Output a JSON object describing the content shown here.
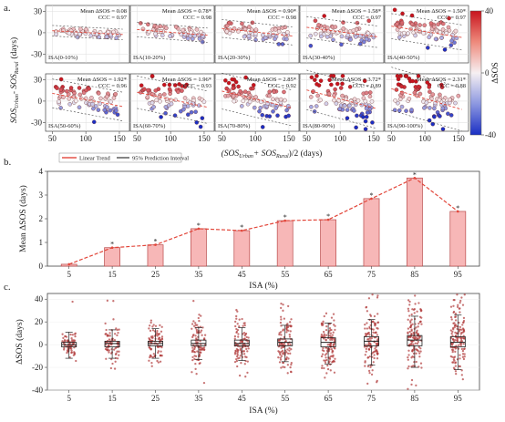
{
  "panels": {
    "a": "a.",
    "b": "b.",
    "c": "c."
  },
  "chart_data": [
    {
      "type": "scatter",
      "panel": "a",
      "ylabel_main": "SOS",
      "ylabel_sub1": "Urban",
      "ylabel_mid": "- SOS",
      "ylabel_sub2": "Rural",
      "ylabel_unit": "(days)",
      "xlabel": "(SOS",
      "xlabel_sub1": "Urban",
      "xlabel_mid": "+ SOS",
      "xlabel_sub2": "Rural",
      "xlabel_tail": ")/2   (days)",
      "yticks": [
        -30,
        0,
        30
      ],
      "xticks": [
        50,
        100,
        150
      ],
      "xlim": [
        40,
        165
      ],
      "ylim": [
        -42,
        38
      ],
      "colorbar": {
        "title": "ΔSOS",
        "ticks": [
          40,
          0,
          -40
        ],
        "range": [
          -40,
          40
        ]
      },
      "subplots": [
        {
          "isa": "ISA(0-10%)",
          "mean": "Mean ΔSOS = 0.08",
          "ccc": "CCC = 0.97"
        },
        {
          "isa": "ISA(10-20%)",
          "mean": "Mean ΔSOS = 0.78*",
          "ccc": "CCC = 0.98"
        },
        {
          "isa": "ISA(20-30%)",
          "mean": "Mean ΔSOS = 0.90*",
          "ccc": "CCC = 0.98"
        },
        {
          "isa": "ISA(30-40%)",
          "mean": "Mean ΔSOS = 1.58*",
          "ccc": "CCC = 0.97"
        },
        {
          "isa": "ISA(40-50%)",
          "mean": "Mean ΔSOS = 1.50*",
          "ccc": "CCC = 0.97"
        },
        {
          "isa": "ISA(50-60%)",
          "mean": "Mean ΔSOS = 1.92*",
          "ccc": "CCC = 0.96"
        },
        {
          "isa": "ISA(60-70%)",
          "mean": "Mean ΔSOS = 1.96*",
          "ccc": "CCC = 0.93"
        },
        {
          "isa": "ISA(70-80%)",
          "mean": "Mean ΔSOS = 2.85*",
          "ccc": "CCC = 0.92"
        },
        {
          "isa": "ISA(80-90%)",
          "mean": "Mean ΔSOS = 3.72*",
          "ccc": "CCC = 0.89"
        },
        {
          "isa": "ISA(90-100%)",
          "mean": "Mean ΔSOS = 2.31*",
          "ccc": "CCC = 0.88"
        }
      ]
    },
    {
      "type": "bar",
      "panel": "b",
      "legend": [
        "Linear Trend",
        "95% Prediction Interval"
      ],
      "categories": [
        "5",
        "15",
        "25",
        "35",
        "45",
        "55",
        "65",
        "75",
        "85",
        "95"
      ],
      "values": [
        0.08,
        0.78,
        0.9,
        1.58,
        1.5,
        1.92,
        1.96,
        2.85,
        3.72,
        2.31
      ],
      "significant": [
        false,
        true,
        true,
        true,
        true,
        true,
        true,
        true,
        true,
        true
      ],
      "ylabel": "Mean ΔSOS   (days)",
      "xlabel": "ISA   (%)",
      "ylim": [
        0,
        4
      ],
      "yticks": [
        0,
        1,
        2,
        3,
        4
      ],
      "colors": {
        "bar": "#f7b7b7",
        "edge": "#b94a4a",
        "trend": "#e2463a"
      }
    },
    {
      "type": "box",
      "panel": "c",
      "categories": [
        "5",
        "15",
        "25",
        "35",
        "45",
        "55",
        "65",
        "75",
        "85",
        "95"
      ],
      "boxes": [
        {
          "q1": -2,
          "median": 0,
          "q3": 2,
          "wlo": -12,
          "whi": 11
        },
        {
          "q1": -2,
          "median": 1,
          "q3": 3,
          "wlo": -12,
          "whi": 13
        },
        {
          "q1": -1,
          "median": 1,
          "q3": 3,
          "wlo": -12,
          "whi": 14
        },
        {
          "q1": -1,
          "median": 1,
          "q3": 4,
          "wlo": -13,
          "whi": 15
        },
        {
          "q1": -1,
          "median": 1,
          "q3": 4,
          "wlo": -14,
          "whi": 15
        },
        {
          "q1": -1,
          "median": 2,
          "q3": 5,
          "wlo": -15,
          "whi": 17
        },
        {
          "q1": -2,
          "median": 2,
          "q3": 6,
          "wlo": -17,
          "whi": 19
        },
        {
          "q1": -1,
          "median": 3,
          "q3": 7,
          "wlo": -18,
          "whi": 22
        },
        {
          "q1": -1,
          "median": 4,
          "q3": 8,
          "wlo": -20,
          "whi": 25
        },
        {
          "q1": -2,
          "median": 2,
          "q3": 7,
          "wlo": -22,
          "whi": 26
        }
      ],
      "ylabel": "ΔSOS   (days)",
      "xlabel": "ISA   (%)",
      "ylim": [
        -40,
        45
      ],
      "yticks": [
        -40,
        -20,
        0,
        20,
        40
      ],
      "colors": {
        "dots": "#b03a3a"
      }
    }
  ]
}
